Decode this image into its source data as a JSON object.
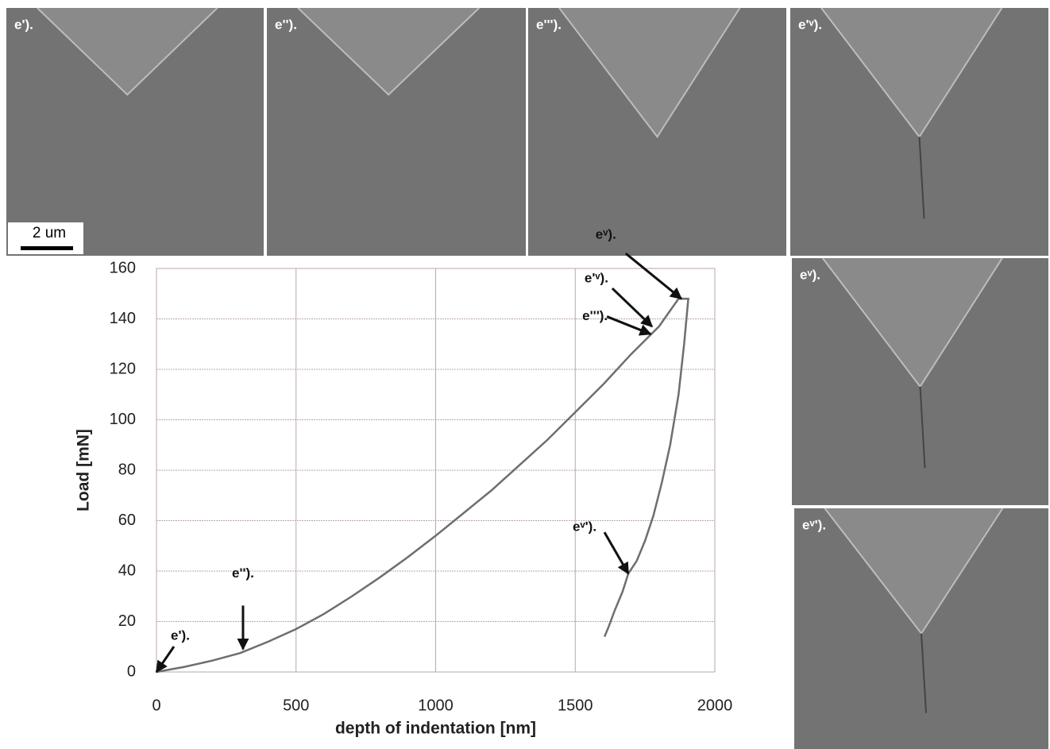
{
  "chart_data": {
    "type": "line",
    "x_label": "depth of indentation [nm]",
    "y_label": "Load [mN]",
    "x": [
      0,
      100,
      200,
      300,
      400,
      500,
      600,
      700,
      800,
      900,
      1000,
      1100,
      1200,
      1300,
      1400,
      1500,
      1600,
      1700,
      1800,
      1870,
      1905,
      1890,
      1870,
      1840,
      1810,
      1780,
      1750,
      1720,
      1690,
      1670,
      1640,
      1620,
      1605
    ],
    "series": [
      {
        "color": "#6e6e6e",
        "values": [
          0,
          2,
          4.5,
          7.5,
          12,
          17,
          23,
          30,
          37.5,
          45.5,
          54,
          63,
          72,
          82,
          92,
          103,
          114,
          126,
          137,
          148,
          148,
          130,
          110,
          90,
          75,
          62,
          52,
          44,
          39,
          32,
          24,
          18,
          14
        ]
      }
    ],
    "xlim": [
      0,
      2000
    ],
    "xticks": [
      0,
      500,
      1000,
      1500,
      2000
    ],
    "ylim": [
      0,
      160
    ],
    "yticks": [
      0,
      20,
      40,
      60,
      80,
      100,
      120,
      140,
      160
    ],
    "grid": true,
    "annotations": [
      {
        "text": "e').",
        "x": 0,
        "y": 0
      },
      {
        "text": "e'').",
        "x": 310,
        "y": 9
      },
      {
        "text": "e''').",
        "x": 1770,
        "y": 134
      },
      {
        "text": "e'ᵛ).",
        "x": 1775,
        "y": 137
      },
      {
        "text": "eᵛ).",
        "x": 1880,
        "y": 148
      },
      {
        "text": "eᵛ').",
        "x": 1690,
        "y": 39
      }
    ]
  },
  "panels": [
    {
      "label": "e')."
    },
    {
      "label": "e'')."
    },
    {
      "label": "e''')."
    },
    {
      "label": "e'ᵛ)."
    },
    {
      "label": "eᵛ)."
    },
    {
      "label": "eᵛ')."
    }
  ],
  "scale_bar": "2 um"
}
